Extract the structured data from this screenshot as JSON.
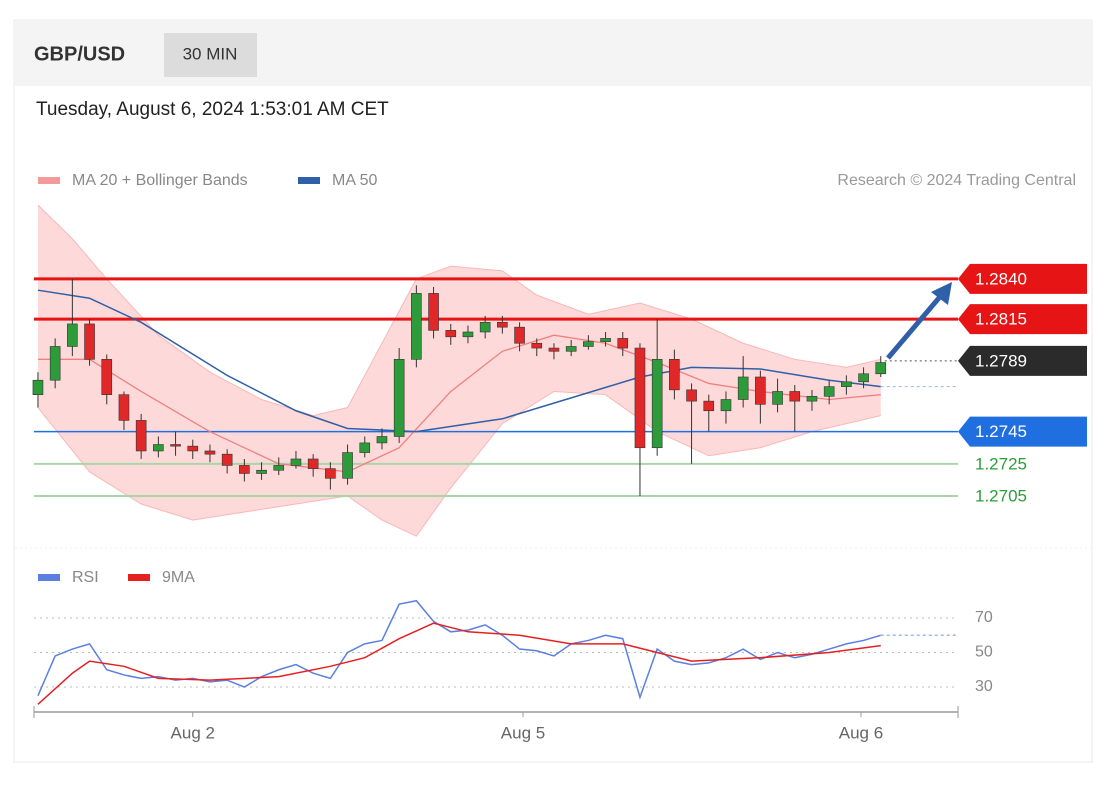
{
  "header": {
    "symbol": "GBP/USD",
    "timeframe": "30 MIN",
    "date": "Tuesday, August 6, 2024 1:53:01 AM CET",
    "credit": "Research © 2024 Trading Central"
  },
  "chart_data": [
    {
      "type": "candlestick",
      "xlim": [
        -0.23,
        53.49
      ],
      "ylim": [
        1.26745,
        1.28891
      ],
      "xticks": [
        {
          "value": 9.0,
          "label": "Aug 2"
        },
        {
          "value": 28.2,
          "label": "Aug 5"
        },
        {
          "value": 47.85,
          "label": "Aug 6"
        }
      ],
      "up_color": "#2e9b3a",
      "down_color": "#e02828",
      "open": [
        1.2768,
        1.2777,
        1.2798,
        1.2812,
        1.279,
        1.2768,
        1.2752,
        1.2733,
        1.2737,
        1.2736,
        1.2733,
        1.2731,
        1.2724,
        1.2719,
        1.2721,
        1.2724,
        1.2728,
        1.2722,
        1.2716,
        1.2732,
        1.2738,
        1.2742,
        1.279,
        1.2831,
        1.2808,
        1.2804,
        1.2807,
        1.2813,
        1.281,
        1.28,
        1.2797,
        1.2795,
        1.2798,
        1.2801,
        1.2803,
        1.2797,
        1.2735,
        1.279,
        1.2771,
        1.2764,
        1.2758,
        1.2765,
        1.2779,
        1.2762,
        1.277,
        1.2764,
        1.2767,
        1.2773,
        1.2776,
        1.2781
      ],
      "high": [
        1.2782,
        1.2803,
        1.284,
        1.2815,
        1.2793,
        1.277,
        1.2756,
        1.2742,
        1.2745,
        1.274,
        1.2737,
        1.2734,
        1.2728,
        1.2726,
        1.2729,
        1.2733,
        1.2731,
        1.2726,
        1.2737,
        1.2742,
        1.2747,
        1.2797,
        1.2836,
        1.2835,
        1.2812,
        1.2811,
        1.2817,
        1.2817,
        1.2813,
        1.2803,
        1.28,
        1.2802,
        1.2805,
        1.2807,
        1.2807,
        1.28,
        1.2815,
        1.2796,
        1.2775,
        1.2768,
        1.277,
        1.2792,
        1.2783,
        1.2778,
        1.2774,
        1.2771,
        1.2777,
        1.278,
        1.2785,
        1.2792
      ],
      "low": [
        1.276,
        1.2772,
        1.2792,
        1.2786,
        1.2762,
        1.2746,
        1.2728,
        1.2729,
        1.273,
        1.2728,
        1.2726,
        1.2719,
        1.2714,
        1.2715,
        1.2718,
        1.2722,
        1.2717,
        1.2709,
        1.2712,
        1.2729,
        1.2734,
        1.2738,
        1.2785,
        1.2803,
        1.2799,
        1.28,
        1.2803,
        1.2806,
        1.2795,
        1.2792,
        1.279,
        1.2792,
        1.2796,
        1.2798,
        1.2792,
        1.2705,
        1.273,
        1.2765,
        1.2725,
        1.2745,
        1.275,
        1.276,
        1.275,
        1.2757,
        1.2745,
        1.2758,
        1.2762,
        1.2768,
        1.2772,
        1.2779
      ],
      "close": [
        1.2777,
        1.2798,
        1.2812,
        1.279,
        1.2768,
        1.2752,
        1.2733,
        1.2737,
        1.2736,
        1.2733,
        1.2731,
        1.2724,
        1.2719,
        1.2721,
        1.2724,
        1.2728,
        1.2722,
        1.2716,
        1.2732,
        1.2738,
        1.2742,
        1.279,
        1.2831,
        1.2808,
        1.2804,
        1.2807,
        1.2813,
        1.281,
        1.28,
        1.2797,
        1.2795,
        1.2798,
        1.2801,
        1.2803,
        1.2797,
        1.2735,
        1.279,
        1.2771,
        1.2764,
        1.2758,
        1.2765,
        1.2779,
        1.2762,
        1.277,
        1.2764,
        1.2767,
        1.2773,
        1.2776,
        1.2781,
        1.2788
      ],
      "bollinger": {
        "upper": {
          "x": [
            0,
            2,
            4,
            7,
            10,
            13,
            16,
            18,
            20,
            22,
            24,
            27,
            29,
            32,
            35,
            38,
            41,
            44,
            47,
            49
          ],
          "values": [
            1.2886,
            1.2865,
            1.284,
            1.2805,
            1.2782,
            1.2765,
            1.2755,
            1.276,
            1.28,
            1.284,
            1.2848,
            1.2845,
            1.283,
            1.2818,
            1.2825,
            1.2815,
            1.28,
            1.279,
            1.2785,
            1.279
          ]
        },
        "lower": {
          "x": [
            0,
            3,
            6,
            9,
            12,
            15,
            18,
            20,
            22,
            24,
            27,
            30,
            33,
            36,
            39,
            42,
            45,
            49
          ],
          "values": [
            1.276,
            1.272,
            1.27,
            1.269,
            1.2695,
            1.27,
            1.2705,
            1.269,
            1.268,
            1.271,
            1.275,
            1.277,
            1.2768,
            1.2745,
            1.273,
            1.2735,
            1.2745,
            1.2755
          ]
        },
        "fill": "#fdd9d9",
        "edge": "#f7b8b8"
      },
      "series": [
        {
          "name": "MA 20 + Bollinger Bands",
          "color": "#f08080",
          "x": [
            0,
            3,
            6,
            10,
            14,
            18,
            21,
            24,
            27,
            30,
            33,
            36,
            39,
            42,
            46,
            49
          ],
          "values": [
            1.279,
            1.279,
            1.277,
            1.2745,
            1.2725,
            1.272,
            1.2735,
            1.277,
            1.2795,
            1.2805,
            1.28,
            1.2788,
            1.2775,
            1.277,
            1.2765,
            1.2768
          ]
        },
        {
          "name": "MA 50",
          "color": "#2f5fa8",
          "x": [
            0,
            3,
            6,
            11,
            15,
            18,
            22,
            27,
            31,
            35,
            38,
            42,
            46,
            49
          ],
          "values": [
            1.2833,
            1.2828,
            1.2813,
            1.278,
            1.2758,
            1.2747,
            1.2745,
            1.2753,
            1.2766,
            1.2779,
            1.2785,
            1.2784,
            1.2777,
            1.2773
          ]
        }
      ],
      "levels": [
        {
          "value": 1.284,
          "label": "1.2840",
          "color": "#e61414",
          "style": "box"
        },
        {
          "value": 1.2815,
          "label": "1.2815",
          "color": "#e61414",
          "style": "box"
        },
        {
          "value": 1.2789,
          "label": "1.2789",
          "color": "#2b2b2b",
          "style": "current"
        },
        {
          "value": 1.2745,
          "label": "1.2745",
          "color": "#1f6fe0",
          "style": "box"
        },
        {
          "value": 1.2725,
          "label": "1.2725",
          "color": "#2e9b3a",
          "style": "text"
        },
        {
          "value": 1.2705,
          "label": "1.2705",
          "color": "#2e9b3a",
          "style": "text"
        }
      ]
    },
    {
      "type": "line",
      "xlim": [
        -0.23,
        53.49
      ],
      "ylim": [
        19,
        80.43
      ],
      "yticks": [
        30,
        50,
        70
      ],
      "series": [
        {
          "name": "RSI",
          "color": "#5b7fe0",
          "x": [
            0,
            1,
            2,
            3,
            4,
            5,
            6,
            7,
            8,
            9,
            10,
            11,
            12,
            13,
            14,
            15,
            16,
            17,
            18,
            19,
            20,
            21,
            22,
            23,
            24,
            25,
            26,
            27,
            28,
            29,
            30,
            31,
            32,
            33,
            34,
            35,
            36,
            37,
            38,
            39,
            40,
            41,
            42,
            43,
            44,
            45,
            46,
            47,
            48,
            49
          ],
          "values": [
            25,
            48,
            52,
            55,
            40,
            37,
            35,
            36,
            34,
            35,
            33,
            34,
            30,
            36,
            40,
            43,
            38,
            35,
            50,
            55,
            57,
            78,
            80,
            68,
            62,
            63,
            66,
            60,
            52,
            51,
            48,
            55,
            57,
            60,
            58,
            24,
            52,
            45,
            43,
            44,
            47,
            52,
            46,
            50,
            47,
            49,
            52,
            55,
            57,
            60
          ]
        },
        {
          "name": "9MA",
          "color": "#e62020",
          "x": [
            0,
            2,
            3,
            5,
            7,
            10,
            14,
            17,
            19,
            21,
            23,
            25,
            28,
            31,
            34,
            36,
            38,
            42,
            46,
            49
          ],
          "values": [
            20,
            38,
            45,
            42,
            35,
            34,
            36,
            42,
            47,
            58,
            67,
            62,
            60,
            55,
            55,
            50,
            45,
            47,
            50,
            54
          ]
        }
      ]
    }
  ]
}
